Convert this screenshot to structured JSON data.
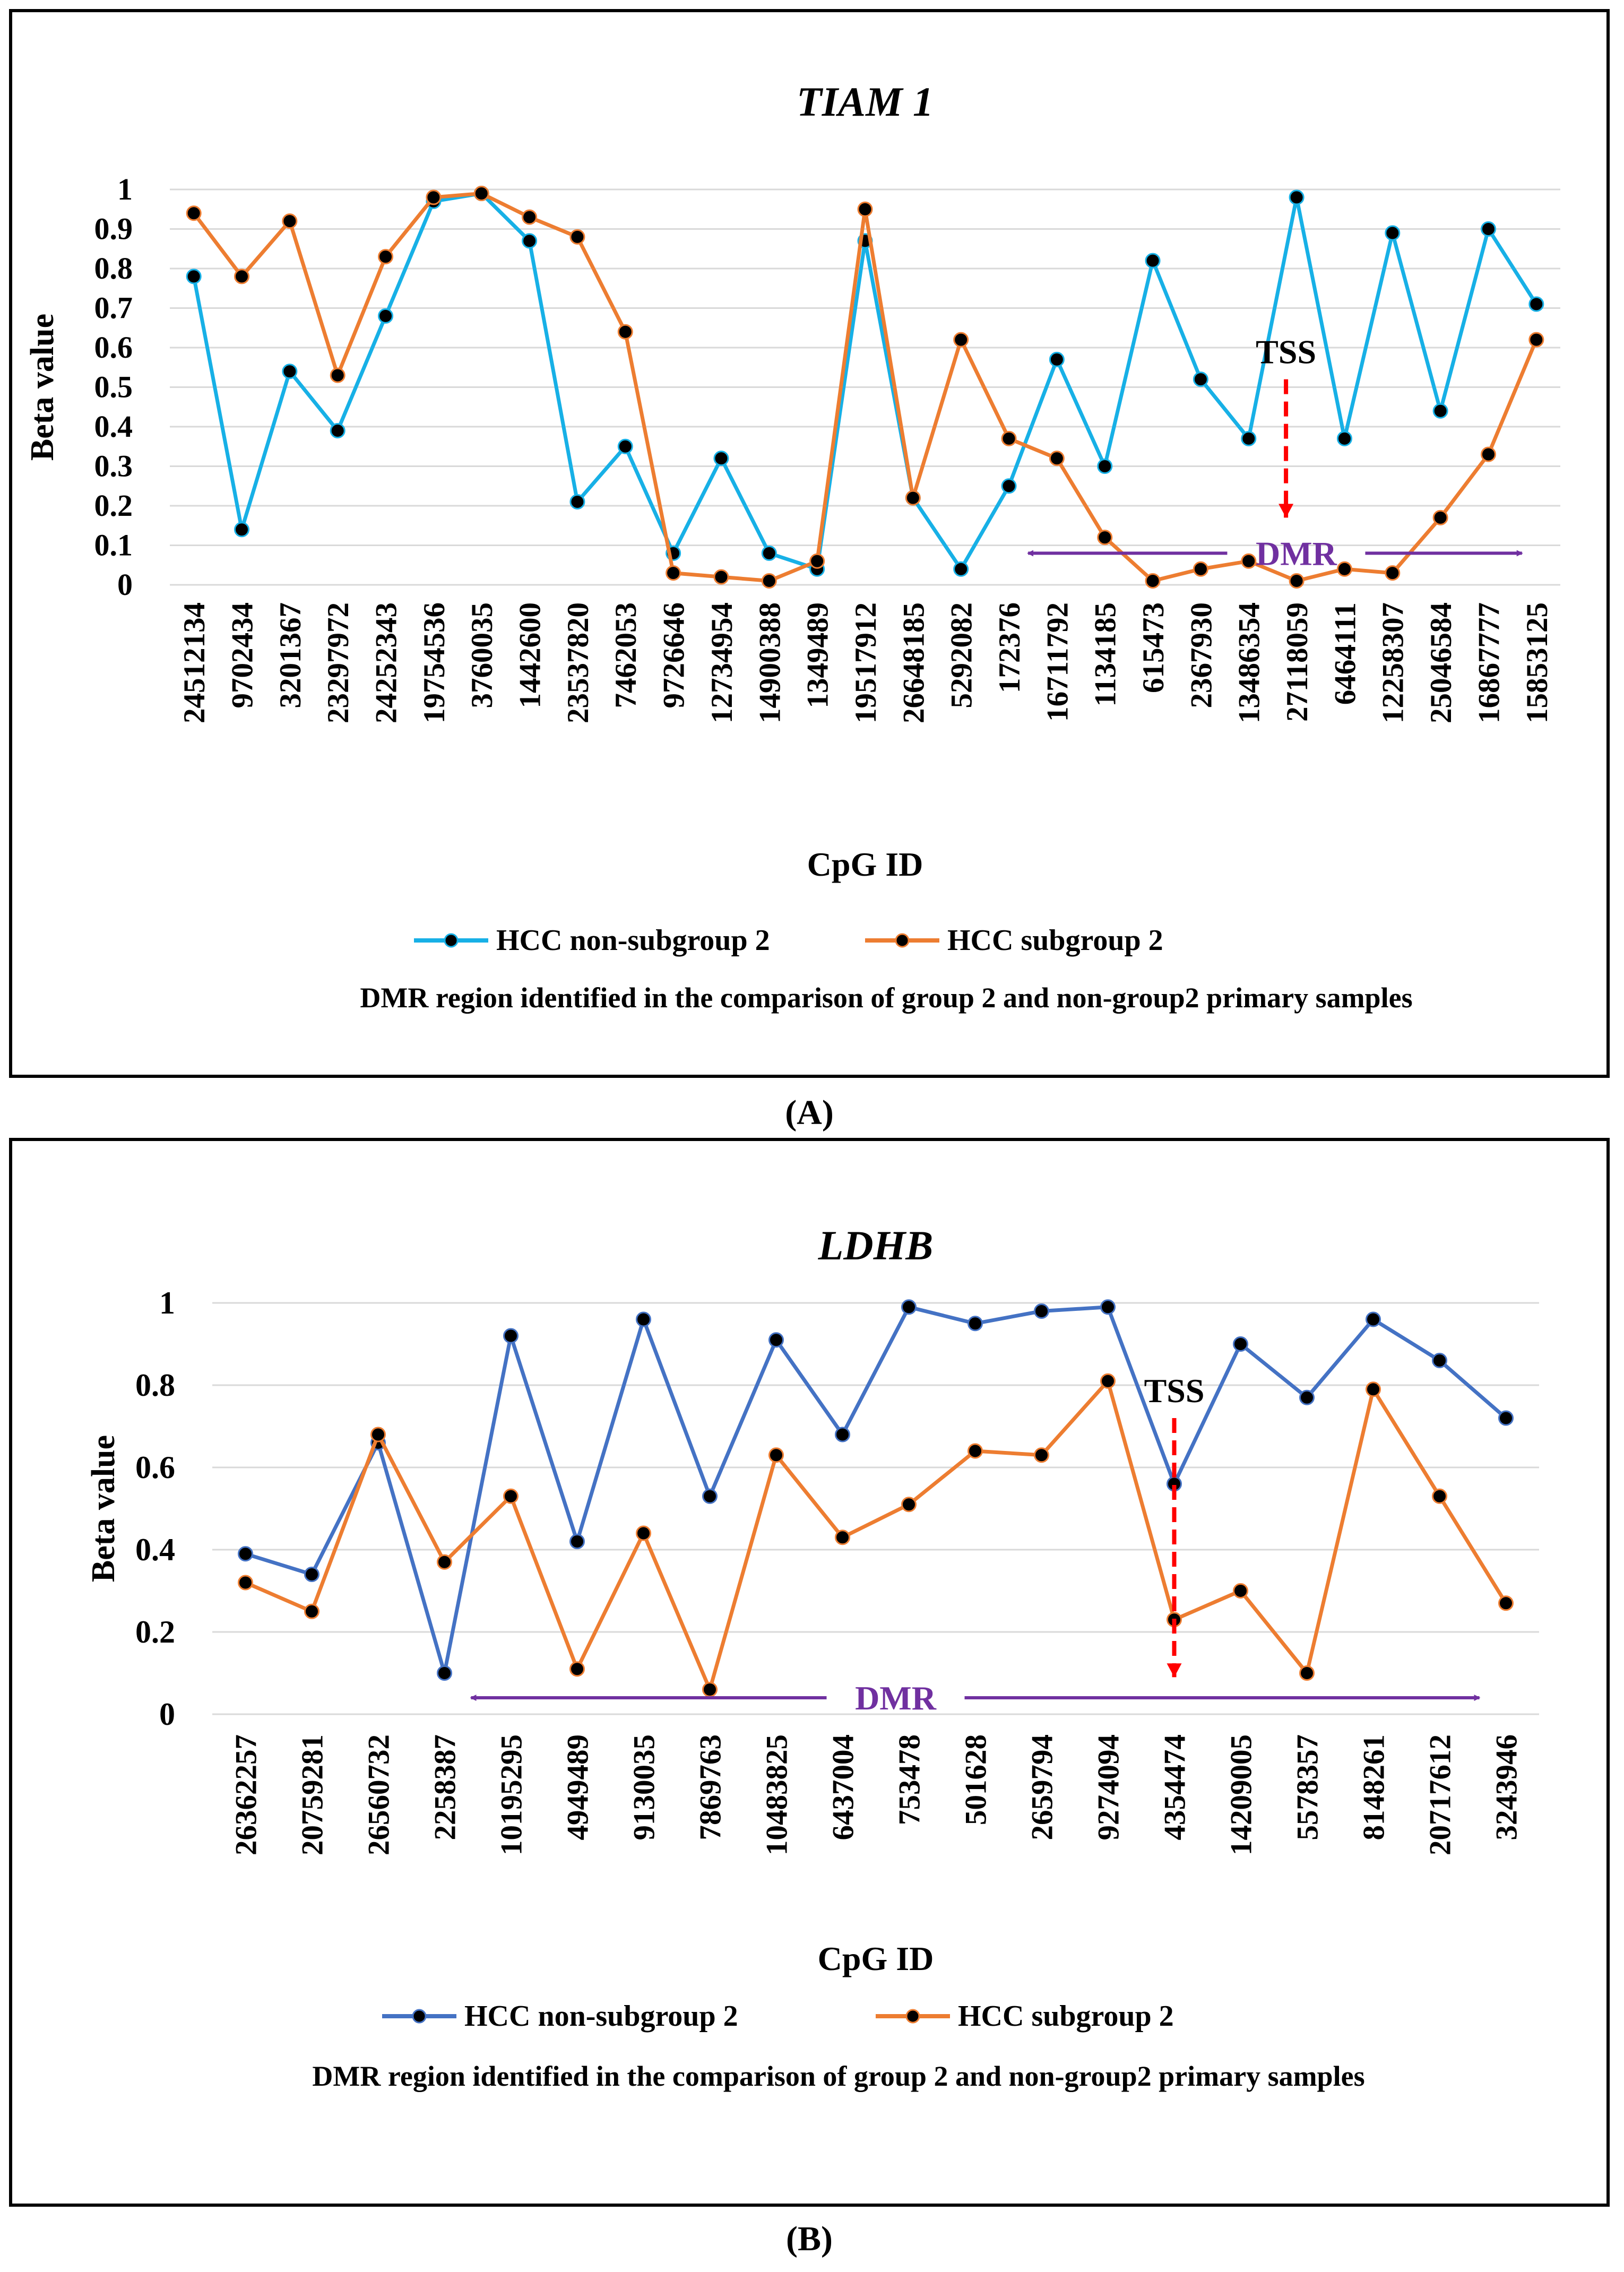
{
  "figure_labels": [
    "(A)",
    "(B)"
  ],
  "chart_data": [
    {
      "type": "line",
      "title": "TIAM 1",
      "xlabel": "CpG ID",
      "ylabel": "Beta value",
      "ylim": [
        0,
        1
      ],
      "yticks": [
        0,
        0.1,
        0.2,
        0.3,
        0.4,
        0.5,
        0.6,
        0.7,
        0.8,
        0.9,
        1
      ],
      "ytick_labels": [
        "0",
        "0.1",
        "0.2",
        "0.3",
        "0.4",
        "0.5",
        "0.6",
        "0.7",
        "0.8",
        "0.9",
        "1"
      ],
      "grid": true,
      "legend_position": "bottom",
      "categories": [
        "24512134",
        "9702434",
        "3201367",
        "23297972",
        "24252343",
        "19754536",
        "3760035",
        "1442600",
        "23537820",
        "7462053",
        "9726646",
        "12734954",
        "14900388",
        "1349489",
        "19517912",
        "26648185",
        "5292082",
        "172376",
        "16711792",
        "1134185",
        "615473",
        "2367930",
        "13486354",
        "27118059",
        "6464111",
        "12258307",
        "25046584",
        "16867777",
        "15853125"
      ],
      "series": [
        {
          "name": "HCC non-subgroup 2",
          "color": "#17b0e6",
          "values": [
            0.78,
            0.14,
            0.54,
            0.39,
            0.68,
            0.97,
            0.99,
            0.87,
            0.21,
            0.35,
            0.08,
            0.32,
            0.08,
            0.04,
            0.87,
            0.22,
            0.04,
            0.25,
            0.57,
            0.3,
            0.82,
            0.52,
            0.37,
            0.98,
            0.37,
            0.89,
            0.44,
            0.9,
            0.71
          ]
        },
        {
          "name": "HCC subgroup 2",
          "color": "#ed7d31",
          "values": [
            0.94,
            0.78,
            0.92,
            0.53,
            0.83,
            0.98,
            0.99,
            0.93,
            0.88,
            0.64,
            0.03,
            0.02,
            0.01,
            0.06,
            0.95,
            0.22,
            0.62,
            0.37,
            0.32,
            0.12,
            0.01,
            0.04,
            0.06,
            0.01,
            0.04,
            0.03,
            0.17,
            0.33,
            0.62
          ]
        }
      ],
      "annotations": {
        "tss": {
          "label": "TSS",
          "category_index": 23,
          "top_value": 0.52,
          "bottom_value": 0.17
        },
        "dmr": {
          "label": "DMR",
          "start_index": 17.9,
          "end_index": 28.2,
          "value": 0.08
        },
        "note": "DMR region identified in the comparison of group 2 and non-group2 primary samples"
      }
    },
    {
      "type": "line",
      "title": "LDHB",
      "xlabel": "CpG ID",
      "ylabel": "Beta value",
      "ylim": [
        0,
        1
      ],
      "yticks": [
        0,
        0.2,
        0.4,
        0.6,
        0.8,
        1
      ],
      "ytick_labels": [
        "0",
        "0.2",
        "0.4",
        "0.6",
        "0.8",
        "1"
      ],
      "grid": true,
      "legend_position": "bottom",
      "categories": [
        "26362257",
        "20759281",
        "26560732",
        "2258387",
        "10195295",
        "4949489",
        "9130035",
        "7869763",
        "10483825",
        "6437004",
        "753478",
        "501628",
        "2659794",
        "9274094",
        "4354474",
        "14209005",
        "5578357",
        "8148261",
        "20717612",
        "3243946"
      ],
      "series": [
        {
          "name": "HCC non-subgroup 2",
          "color": "#4472c4",
          "values": [
            0.39,
            0.34,
            0.66,
            0.1,
            0.92,
            0.42,
            0.96,
            0.53,
            0.91,
            0.68,
            0.99,
            0.95,
            0.98,
            0.99,
            0.56,
            0.9,
            0.77,
            0.96,
            0.86,
            0.72
          ]
        },
        {
          "name": "HCC subgroup 2",
          "color": "#ed7d31",
          "values": [
            0.32,
            0.25,
            0.68,
            0.37,
            0.53,
            0.11,
            0.44,
            0.06,
            0.63,
            0.43,
            0.51,
            0.64,
            0.63,
            0.81,
            0.23,
            0.3,
            0.1,
            0.79,
            0.53,
            0.27
          ]
        }
      ],
      "annotations": {
        "tss": {
          "label": "TSS",
          "category_index": 14,
          "top_value": 0.72,
          "bottom_value": 0.09
        },
        "dmr": {
          "label": "DMR",
          "start_index": 3.9,
          "end_index": 19.1,
          "value": 0.04
        },
        "note": "DMR region identified in the comparison of group 2 and non-group2 primary  samples"
      }
    }
  ]
}
